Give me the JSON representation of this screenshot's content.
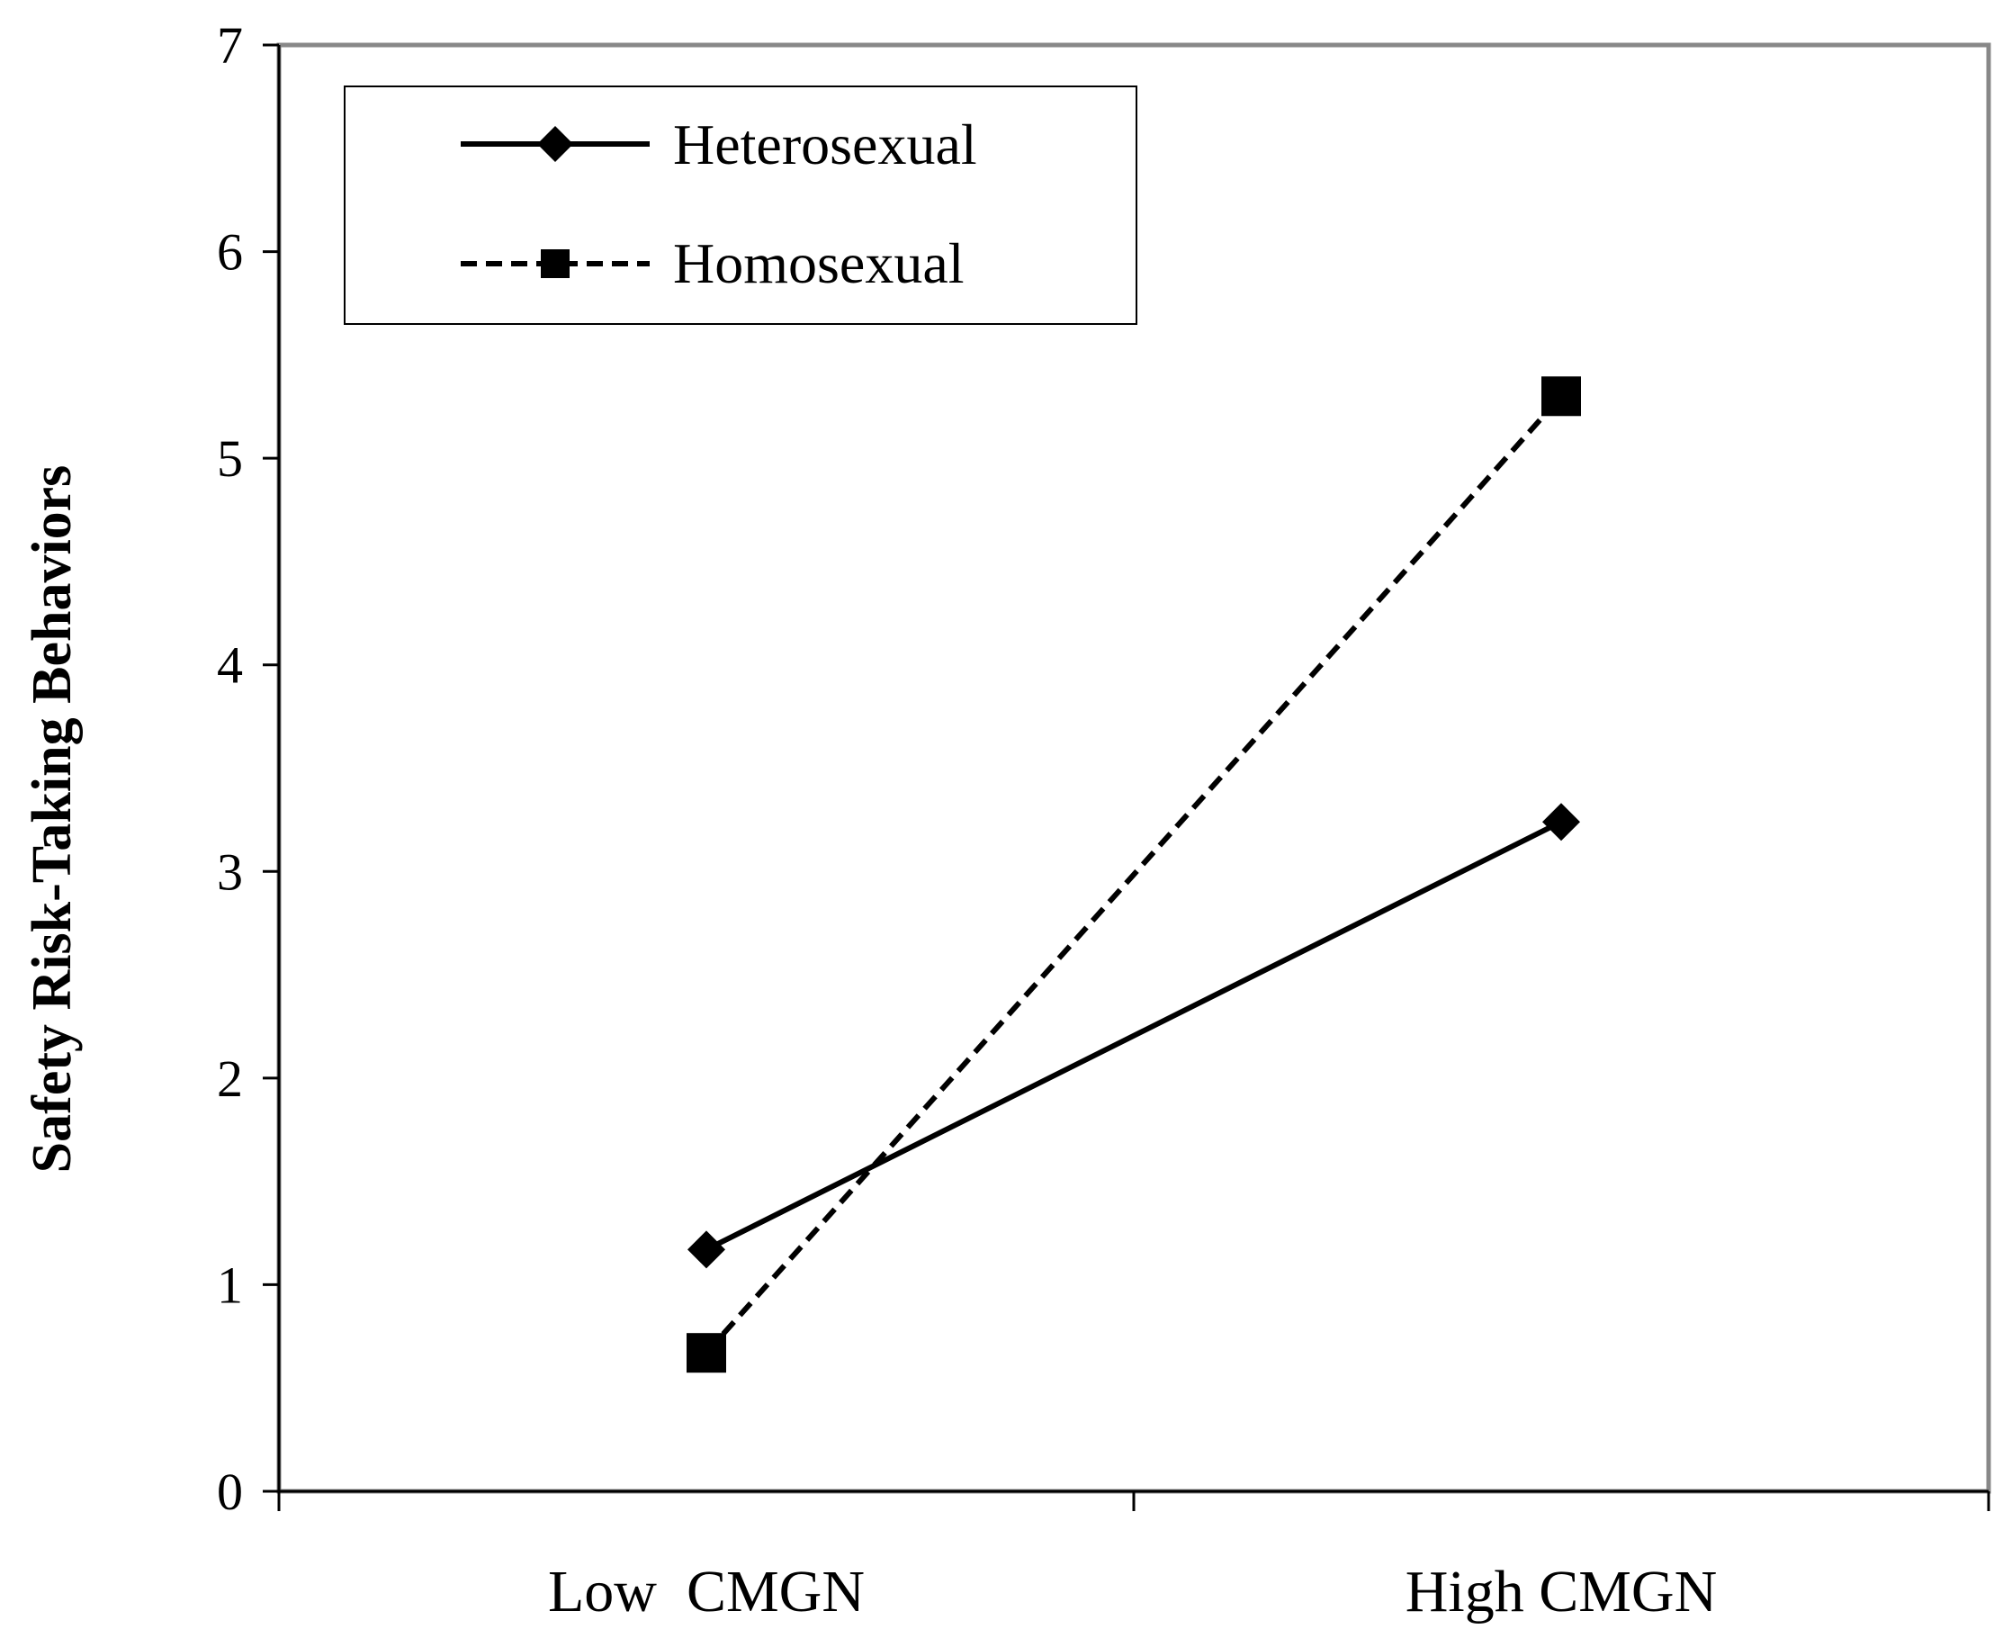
{
  "chart_data": {
    "type": "line",
    "title": "",
    "xlabel": "",
    "ylabel": "Safety Risk-Taking Behaviors",
    "categories": [
      "Low  CMGN",
      "High CMGN"
    ],
    "ylim": [
      0,
      7
    ],
    "yticks": [
      "0",
      "1",
      "2",
      "3",
      "4",
      "5",
      "6",
      "7"
    ],
    "legend_position": "top-left",
    "series": [
      {
        "name": "Heterosexual",
        "values": [
          1.17,
          3.24
        ],
        "line_style": "solid",
        "marker": "diamond",
        "color": "#000000"
      },
      {
        "name": "Homosexual",
        "values": [
          0.67,
          5.3
        ],
        "line_style": "dashed",
        "marker": "square",
        "color": "#000000"
      }
    ]
  },
  "colors": {
    "frame": "#888888",
    "axis": "#000000",
    "background": "#ffffff"
  }
}
